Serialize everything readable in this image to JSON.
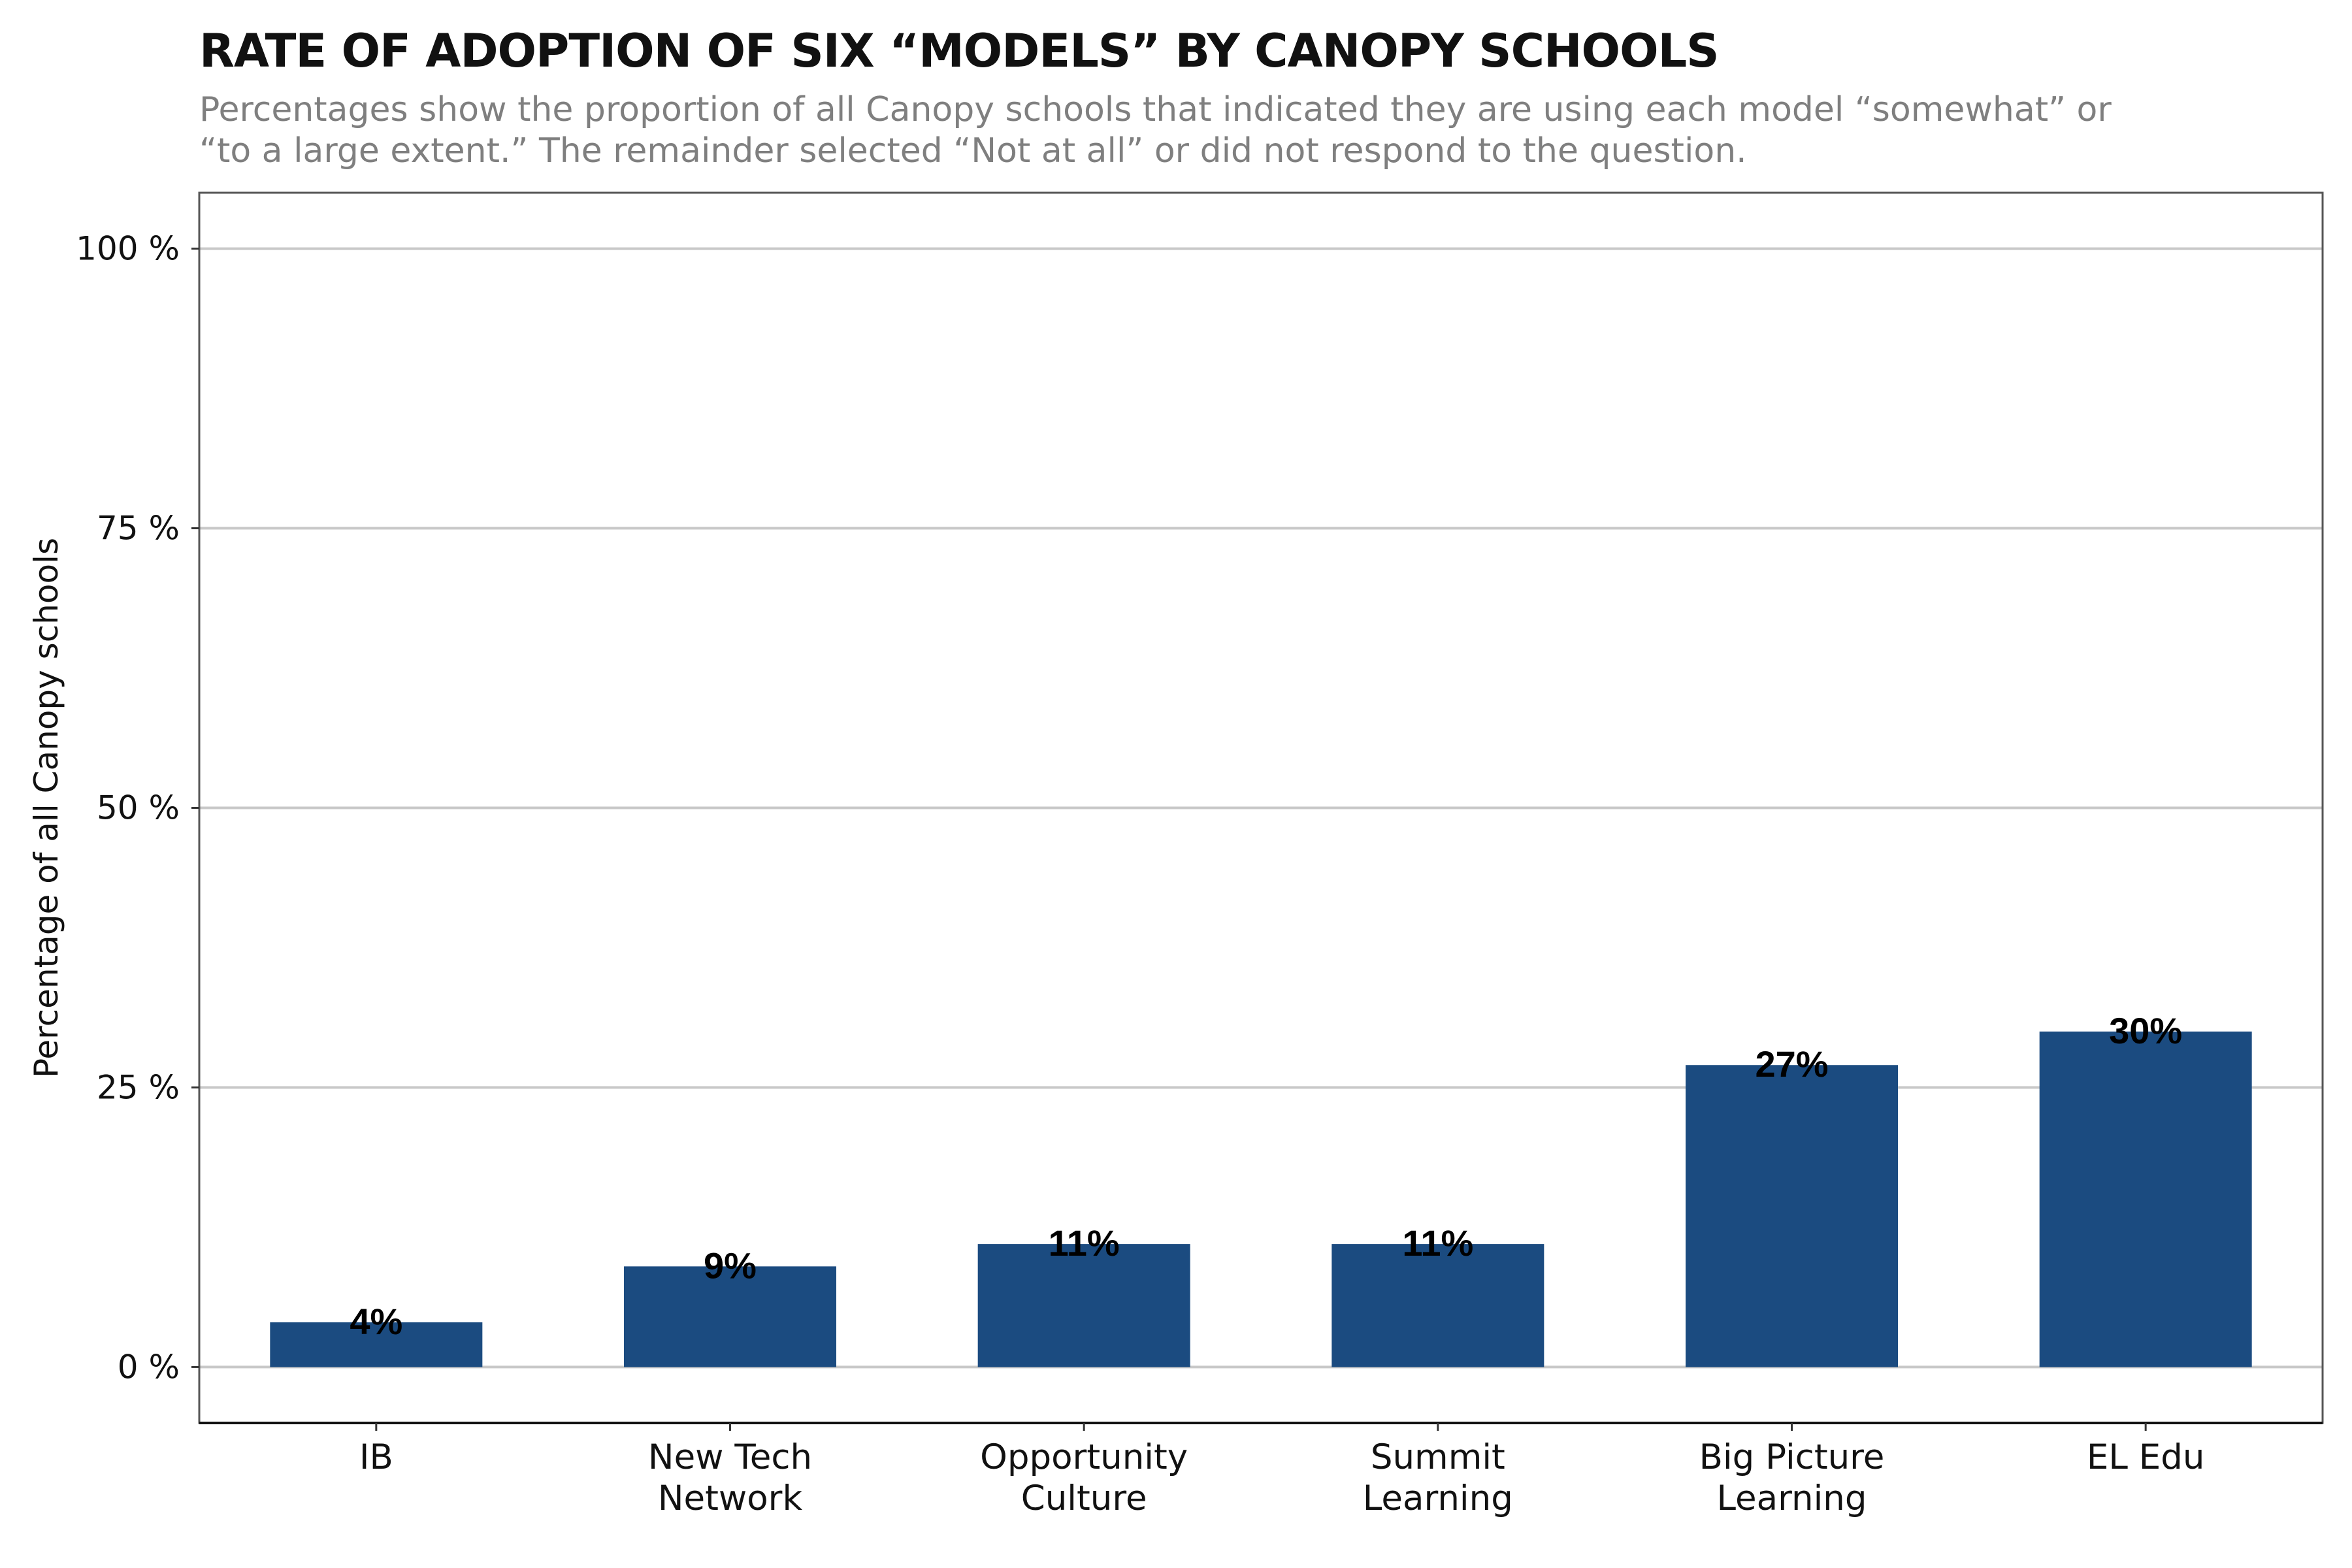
{
  "chart_data": {
    "type": "bar",
    "title": "RATE OF ADOPTION OF SIX “MODELS” BY CANOPY SCHOOLS",
    "subtitle": [
      "Percentages show the proportion of all Canopy schools that indicated they are using each model “somewhat” or",
      "“to a large extent.” The remainder selected “Not at all” or did not respond to the question."
    ],
    "xlabel": "",
    "ylabel": "Percentage of all Canopy schools",
    "categories": [
      [
        "IB"
      ],
      [
        "New Tech",
        "Network"
      ],
      [
        "Opportunity",
        "Culture"
      ],
      [
        "Summit",
        "Learning"
      ],
      [
        "Big Picture",
        "Learning"
      ],
      [
        "EL Edu"
      ]
    ],
    "values": [
      4,
      9,
      11,
      11,
      27,
      30
    ],
    "data_labels": [
      "4%",
      "9%",
      "11%",
      "11%",
      "27%",
      "30%"
    ],
    "ylim": [
      -5,
      105
    ],
    "yticks": [
      0,
      25,
      50,
      75,
      100
    ],
    "ytick_labels": [
      "0 %",
      "25 %",
      "50 %",
      "75 %",
      "100 %"
    ],
    "grid": true,
    "colors": {
      "bar": "#1b4b80",
      "grid": "#c8c8c8",
      "frame": "#555555"
    }
  }
}
